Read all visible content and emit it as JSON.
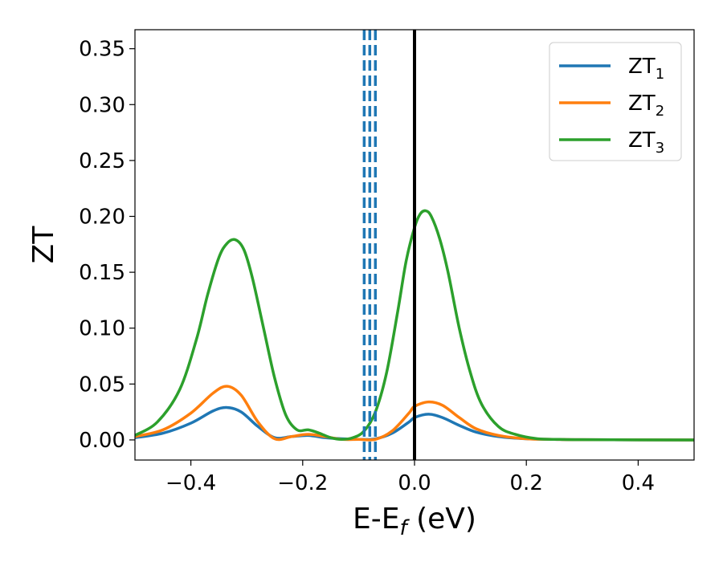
{
  "chart_data": {
    "type": "line",
    "xlabel": "E-E",
    "xlabel_sub": "f",
    "xlabel_unit": " (eV)",
    "ylabel": "ZT",
    "xlim": [
      -0.5,
      0.5
    ],
    "ylim": [
      -0.018,
      0.367
    ],
    "xticks": [
      -0.4,
      -0.2,
      0.0,
      0.2,
      0.4
    ],
    "xtick_labels": [
      "−0.4",
      "−0.2",
      "0.0",
      "0.2",
      "0.4"
    ],
    "yticks": [
      0.0,
      0.05,
      0.1,
      0.15,
      0.2,
      0.25,
      0.3,
      0.35
    ],
    "ytick_labels": [
      "0.00",
      "0.05",
      "0.10",
      "0.15",
      "0.20",
      "0.25",
      "0.30",
      "0.35"
    ],
    "grid": false,
    "legend_position": "top-right",
    "series": [
      {
        "name": "ZT",
        "sub": "1",
        "color": "#1f77b4",
        "x": [
          -0.5,
          -0.45,
          -0.4,
          -0.36,
          -0.335,
          -0.31,
          -0.28,
          -0.25,
          -0.22,
          -0.19,
          -0.16,
          -0.13,
          -0.1,
          -0.07,
          -0.04,
          -0.01,
          0.0,
          0.025,
          0.05,
          0.08,
          0.11,
          0.15,
          0.2,
          0.25,
          0.3,
          0.5
        ],
        "y": [
          0.002,
          0.006,
          0.015,
          0.026,
          0.029,
          0.025,
          0.012,
          0.002,
          0.003,
          0.004,
          0.002,
          0.001,
          0.0005,
          0.001,
          0.006,
          0.016,
          0.02,
          0.023,
          0.02,
          0.013,
          0.007,
          0.003,
          0.001,
          0.0005,
          0.0002,
          0.0
        ]
      },
      {
        "name": "ZT",
        "sub": "2",
        "color": "#ff7f0e",
        "x": [
          -0.5,
          -0.45,
          -0.4,
          -0.36,
          -0.335,
          -0.31,
          -0.28,
          -0.25,
          -0.22,
          -0.19,
          -0.16,
          -0.13,
          -0.1,
          -0.07,
          -0.04,
          -0.01,
          0.0,
          0.025,
          0.05,
          0.08,
          0.11,
          0.15,
          0.2,
          0.25,
          0.3,
          0.5
        ],
        "y": [
          0.003,
          0.009,
          0.024,
          0.042,
          0.048,
          0.04,
          0.016,
          0.001,
          0.003,
          0.005,
          0.003,
          0.0005,
          0.0005,
          0.0005,
          0.008,
          0.024,
          0.03,
          0.034,
          0.031,
          0.02,
          0.01,
          0.004,
          0.001,
          0.0005,
          0.0002,
          0.0
        ]
      },
      {
        "name": "ZT",
        "sub": "3",
        "color": "#2ca02c",
        "x": [
          -0.5,
          -0.46,
          -0.42,
          -0.39,
          -0.37,
          -0.35,
          -0.335,
          -0.32,
          -0.305,
          -0.29,
          -0.27,
          -0.25,
          -0.23,
          -0.21,
          -0.19,
          -0.17,
          -0.15,
          -0.13,
          -0.11,
          -0.09,
          -0.07,
          -0.05,
          -0.03,
          -0.015,
          0.0,
          0.01,
          0.02,
          0.03,
          0.045,
          0.06,
          0.08,
          0.1,
          0.12,
          0.15,
          0.18,
          0.22,
          0.26,
          0.3,
          0.5
        ],
        "y": [
          0.004,
          0.016,
          0.045,
          0.09,
          0.13,
          0.163,
          0.176,
          0.179,
          0.17,
          0.145,
          0.1,
          0.055,
          0.022,
          0.009,
          0.009,
          0.006,
          0.002,
          0.0005,
          0.002,
          0.008,
          0.025,
          0.06,
          0.115,
          0.16,
          0.19,
          0.202,
          0.205,
          0.2,
          0.18,
          0.15,
          0.1,
          0.06,
          0.032,
          0.012,
          0.005,
          0.001,
          0.0005,
          0.0002,
          0.0
        ]
      }
    ],
    "vlines": [
      {
        "x": -0.09,
        "color": "#1f77b4",
        "style": "dashed"
      },
      {
        "x": -0.08,
        "color": "#1f77b4",
        "style": "dashed"
      },
      {
        "x": -0.07,
        "color": "#1f77b4",
        "style": "dashed"
      },
      {
        "x": 0.0,
        "color": "#000000",
        "style": "solid"
      }
    ]
  }
}
